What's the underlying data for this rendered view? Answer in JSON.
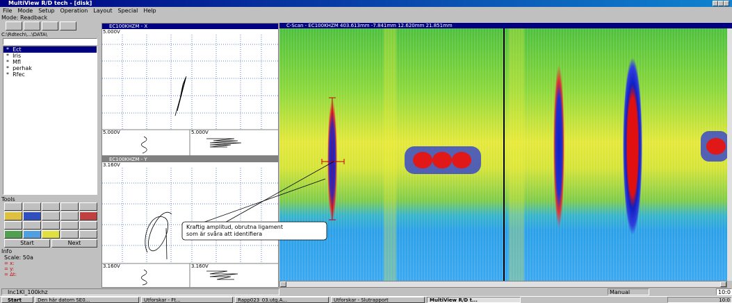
{
  "window": {
    "title": "MultiView R/D tech - [disk]"
  },
  "menu": [
    "File",
    "Mode",
    "Setup",
    "Operation",
    "Layout",
    "Special",
    "Help"
  ],
  "left_panel": {
    "mode_label": "Mode: Readback",
    "path": "C:\\Rdtech\\...\\DATA\\",
    "file_marker": "*",
    "files": [
      "Ect",
      "Iris",
      "Mfl",
      "perhak",
      "Rfec"
    ],
    "tools_label": "Tools",
    "buttons": [
      "Start",
      "Next"
    ],
    "info_label": "Info",
    "scale": "Scale: 50a",
    "info_rows": [
      "= x:",
      "= y:",
      "= Δt:"
    ]
  },
  "x_view": {
    "title": "EC100KHZM - X",
    "top_label": "5.000V",
    "bottom_left": "5.000V",
    "bottom_right": "5.000V"
  },
  "y_view": {
    "title": "EC100KHZM - Y",
    "top_label": "3.160V",
    "bottom_left": "3.160V",
    "bottom_right": "3.160V"
  },
  "cscan": {
    "title": "C-Scan - EC100KHZM  403.613mm -7.841mm 12.620mm 21.851mm",
    "annotation": [
      "Kraftig amplitud, obrutna ligament",
      "som är svåra att identifiera"
    ]
  },
  "status": {
    "file": "Inc1Kl_100khz",
    "mode": "Manual",
    "clock": "10:0"
  },
  "taskbar": {
    "start": "Start",
    "tasks": [
      "Den här datorn SE0...",
      "Utforskar - Ft...",
      "Rapp023_03.utg.A...",
      "Utforskar - Slutrapport",
      "MultiView R/D t..."
    ],
    "clock": "10:0"
  }
}
